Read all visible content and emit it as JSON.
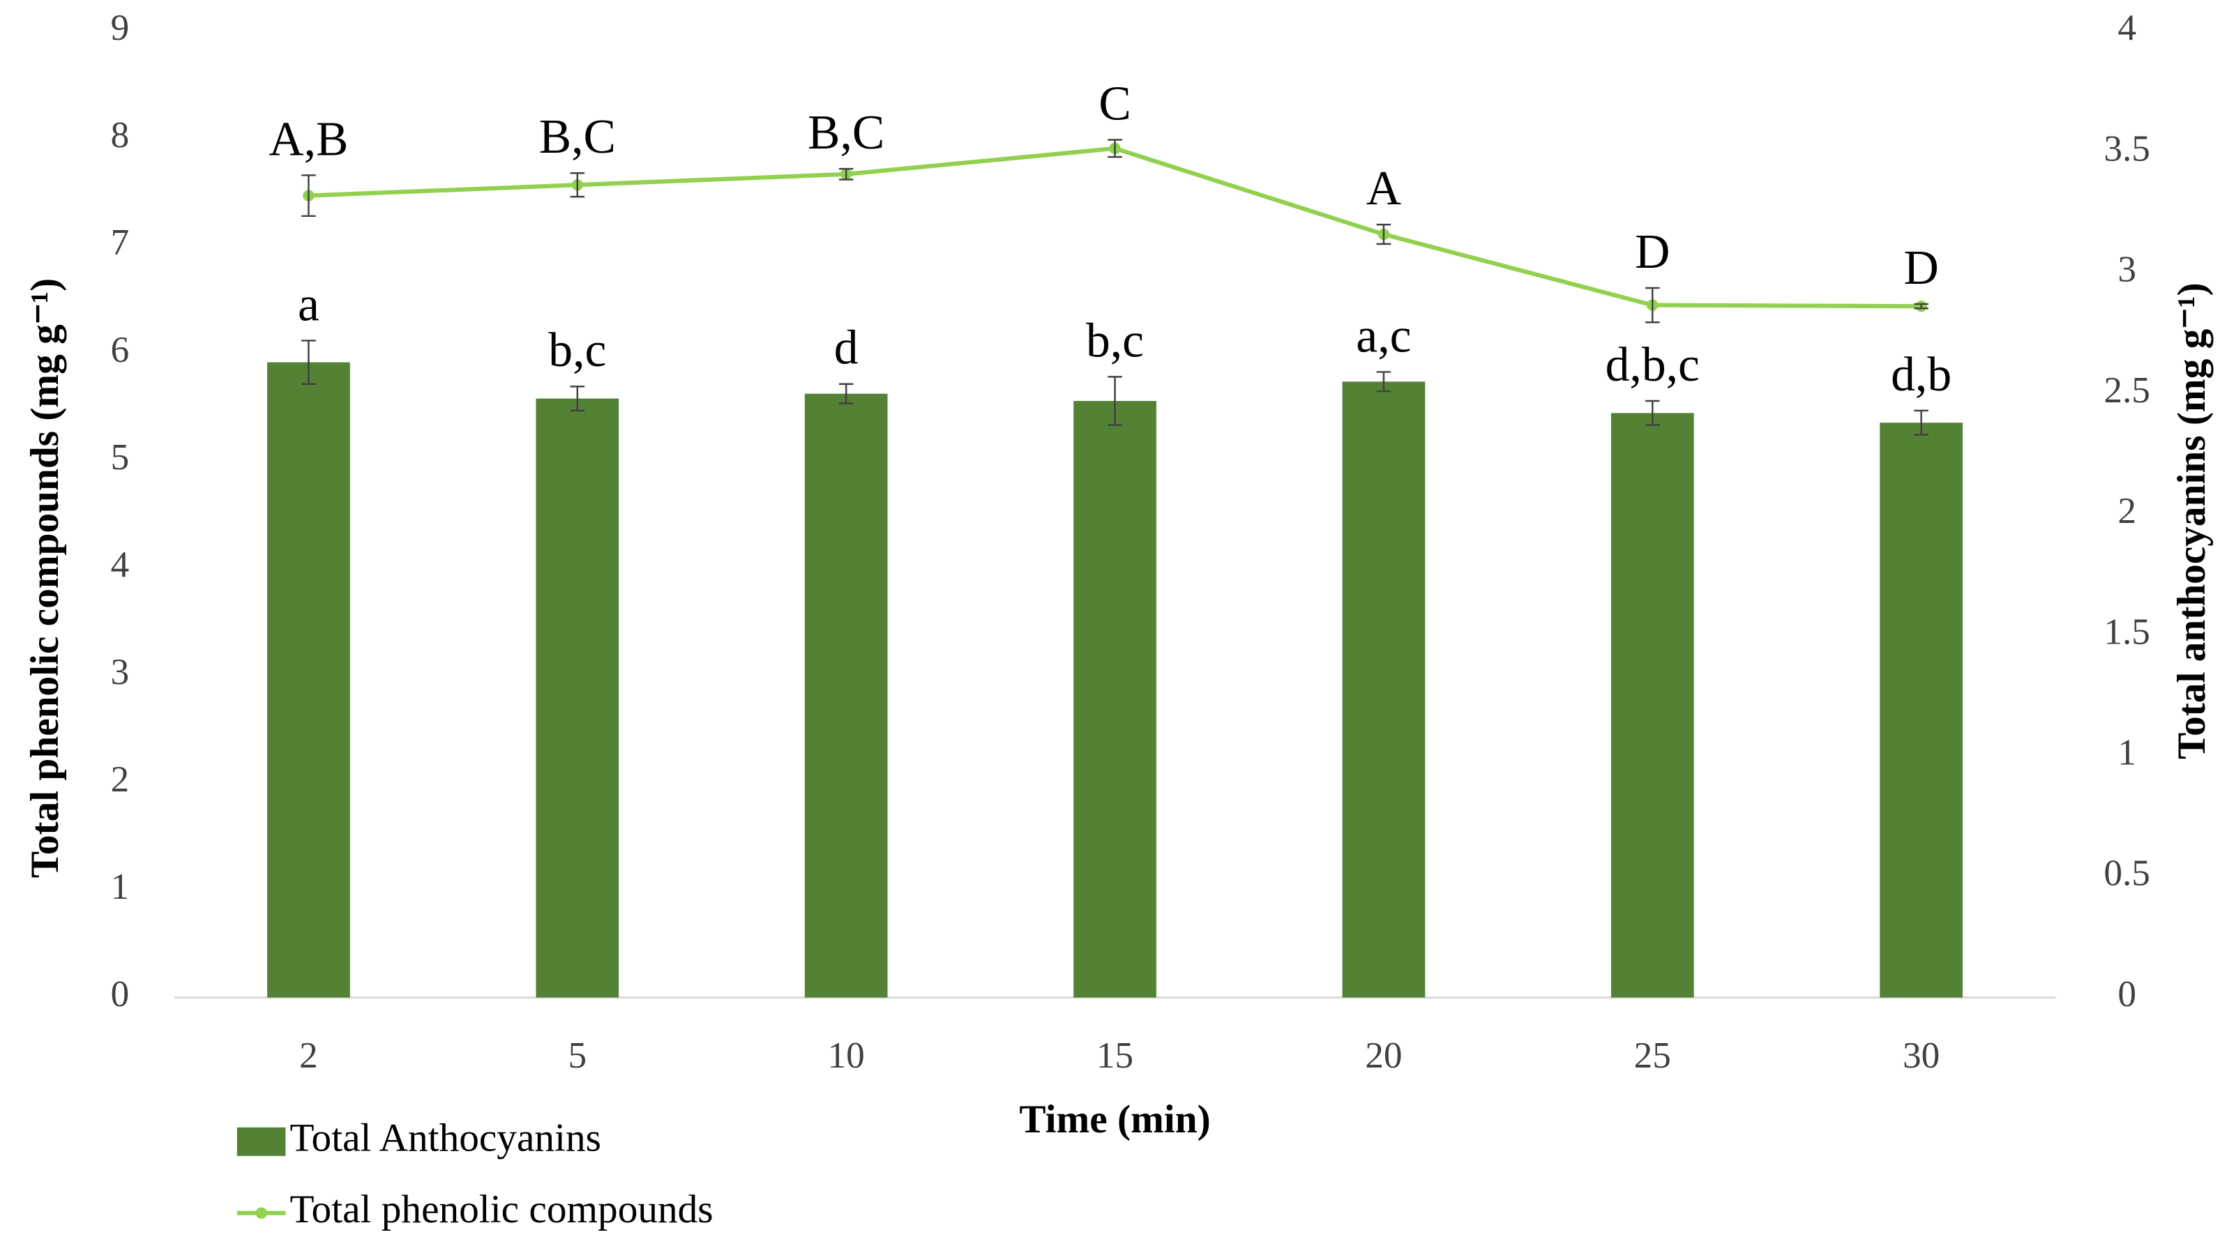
{
  "chart_data": {
    "type": "bar-line",
    "xlabel": "Time (min)",
    "ylabel": "Total phenolic compounds (mg g⁻¹)",
    "y2label": "Total anthocyanins (mg g⁻¹)",
    "categories": [
      "2",
      "5",
      "10",
      "15",
      "20",
      "25",
      "30"
    ],
    "ylim": [
      0,
      9
    ],
    "yticks": [
      0,
      1,
      2,
      3,
      4,
      5,
      6,
      7,
      8,
      9
    ],
    "y2lim": [
      0,
      4
    ],
    "y2ticks": [
      0,
      0.5,
      1,
      1.5,
      2,
      2.5,
      3,
      3.5,
      4
    ],
    "grid": false,
    "legend": "bottom-left",
    "series": [
      {
        "name": "Total Anthocyanins",
        "type": "bar",
        "axis": "y2",
        "color": "#548235",
        "values": [
          2.63,
          2.48,
          2.5,
          2.47,
          2.55,
          2.42,
          2.38
        ],
        "errors": [
          0.09,
          0.05,
          0.04,
          0.1,
          0.04,
          0.05,
          0.05
        ],
        "labels": [
          "a",
          "b,c",
          "d",
          "b,c",
          "a,c",
          "d,b,c",
          "d,b"
        ]
      },
      {
        "name": "Total phenolic compounds",
        "type": "line",
        "axis": "y",
        "color": "#92d050",
        "values": [
          7.47,
          7.57,
          7.67,
          7.91,
          7.11,
          6.45,
          6.44
        ],
        "errors": [
          0.19,
          0.11,
          0.05,
          0.08,
          0.09,
          0.16,
          0.02
        ],
        "labels": [
          "A,B",
          "B,C",
          "B,C",
          "C",
          "A",
          "D",
          "D"
        ]
      }
    ]
  }
}
